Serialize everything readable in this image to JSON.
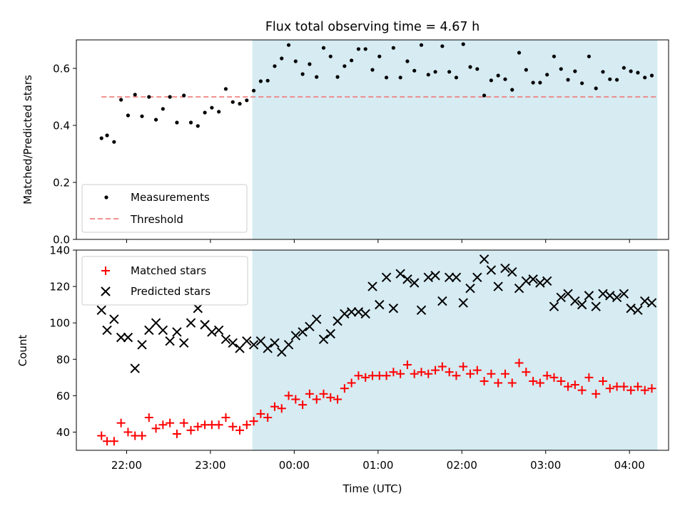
{
  "chart_data": [
    {
      "type": "scatter",
      "title": "Flux total observing time = 4.67 h",
      "ylabel": "Matched/Predicted stars",
      "xlabel": "",
      "ylim": [
        0,
        0.7
      ],
      "yticks": [
        0.0,
        0.2,
        0.4,
        0.6
      ],
      "ytick_labels": [
        "0.0",
        "0.2",
        "0.4",
        "0.6"
      ],
      "x_range": [
        "21:24",
        "04:28"
      ],
      "highlight_span": [
        "23:30",
        "04:20"
      ],
      "highlight_color": "#add8e6",
      "legend": {
        "placement": "lower-left",
        "entries": [
          "Measurements",
          "Threshold"
        ]
      },
      "series": [
        {
          "name": "Measurements",
          "marker": "dot",
          "color": "#000000",
          "x": [
            "21:42",
            "21:46",
            "21:51",
            "21:56",
            "22:01",
            "22:06",
            "22:11",
            "22:16",
            "22:21",
            "22:26",
            "22:31",
            "22:36",
            "22:41",
            "22:46",
            "22:51",
            "22:56",
            "23:01",
            "23:06",
            "23:11",
            "23:16",
            "23:21",
            "23:26",
            "23:31",
            "23:36",
            "23:41",
            "23:46",
            "23:51",
            "23:56",
            "00:01",
            "00:06",
            "00:11",
            "00:16",
            "00:21",
            "00:26",
            "00:31",
            "00:36",
            "00:41",
            "00:46",
            "00:51",
            "00:56",
            "01:01",
            "01:06",
            "01:11",
            "01:16",
            "01:21",
            "01:26",
            "01:31",
            "01:36",
            "01:41",
            "01:46",
            "01:51",
            "01:56",
            "02:01",
            "02:06",
            "02:11",
            "02:16",
            "02:21",
            "02:26",
            "02:31",
            "02:36",
            "02:41",
            "02:46",
            "02:51",
            "02:56",
            "03:01",
            "03:06",
            "03:11",
            "03:16",
            "03:21",
            "03:26",
            "03:31",
            "03:36",
            "03:41",
            "03:46",
            "03:51",
            "03:56",
            "04:01",
            "04:06",
            "04:11",
            "04:16"
          ],
          "y": [
            0.355,
            0.365,
            0.342,
            0.49,
            0.435,
            0.508,
            0.432,
            0.5,
            0.42,
            0.458,
            0.5,
            0.41,
            0.505,
            0.41,
            0.398,
            0.445,
            0.462,
            0.448,
            0.528,
            0.482,
            0.476,
            0.488,
            0.522,
            0.555,
            0.557,
            0.608,
            0.635,
            0.682,
            0.625,
            0.58,
            0.615,
            0.57,
            0.672,
            0.642,
            0.57,
            0.608,
            0.628,
            0.668,
            0.668,
            0.595,
            0.642,
            0.568,
            0.672,
            0.568,
            0.625,
            0.592,
            0.682,
            0.578,
            0.588,
            0.678,
            0.588,
            0.568,
            0.685,
            0.605,
            0.598,
            0.505,
            0.558,
            0.575,
            0.562,
            0.525,
            0.655,
            0.595,
            0.55,
            0.55,
            0.578,
            0.642,
            0.598,
            0.56,
            0.59,
            0.548,
            0.642,
            0.53,
            0.588,
            0.562,
            0.56,
            0.602,
            0.59,
            0.585,
            0.568,
            0.575
          ]
        },
        {
          "name": "Threshold",
          "marker": "dashed-line",
          "color": "#f08080",
          "x": [
            "21:42",
            "04:20"
          ],
          "y": [
            0.5,
            0.5
          ]
        }
      ]
    },
    {
      "type": "scatter",
      "title": "",
      "xlabel": "Time (UTC)",
      "ylabel": "Count",
      "ylim": [
        30,
        140
      ],
      "yticks": [
        40,
        60,
        80,
        100,
        120,
        140
      ],
      "ytick_labels": [
        "40",
        "60",
        "80",
        "100",
        "120",
        "140"
      ],
      "x_range": [
        "21:24",
        "04:28"
      ],
      "xtick_values": [
        "22:00",
        "23:00",
        "24:00",
        "25:00",
        "26:00",
        "27:00",
        "28:00"
      ],
      "xtick_labels": [
        "22:00",
        "23:00",
        "00:00",
        "01:00",
        "02:00",
        "03:00",
        "04:00"
      ],
      "highlight_span": [
        "23:30",
        "04:20"
      ],
      "highlight_color": "#add8e6",
      "legend": {
        "placement": "upper-left",
        "entries": [
          "Matched stars",
          "Predicted stars"
        ]
      },
      "series": [
        {
          "name": "Matched stars",
          "marker": "plus",
          "color": "#ff0000",
          "x": [
            "21:42",
            "21:46",
            "21:51",
            "21:56",
            "22:01",
            "22:06",
            "22:11",
            "22:16",
            "22:21",
            "22:26",
            "22:31",
            "22:36",
            "22:41",
            "22:46",
            "22:51",
            "22:56",
            "23:01",
            "23:06",
            "23:11",
            "23:16",
            "23:21",
            "23:26",
            "23:31",
            "23:36",
            "23:41",
            "23:46",
            "23:51",
            "23:56",
            "00:01",
            "00:06",
            "00:11",
            "00:16",
            "00:21",
            "00:26",
            "00:31",
            "00:36",
            "00:41",
            "00:46",
            "00:51",
            "00:56",
            "01:01",
            "01:06",
            "01:11",
            "01:16",
            "01:21",
            "01:26",
            "01:31",
            "01:36",
            "01:41",
            "01:46",
            "01:51",
            "01:56",
            "02:01",
            "02:06",
            "02:11",
            "02:16",
            "02:21",
            "02:26",
            "02:31",
            "02:36",
            "02:41",
            "02:46",
            "02:51",
            "02:56",
            "03:01",
            "03:06",
            "03:11",
            "03:16",
            "03:21",
            "03:26",
            "03:31",
            "03:36",
            "03:41",
            "03:46",
            "03:51",
            "03:56",
            "04:01",
            "04:06",
            "04:11",
            "04:16"
          ],
          "y": [
            38,
            35,
            35,
            45,
            40,
            38,
            38,
            48,
            42,
            44,
            45,
            39,
            45,
            41,
            43,
            44,
            44,
            44,
            48,
            43,
            41,
            44,
            46,
            50,
            48,
            54,
            53,
            60,
            58,
            55,
            61,
            58,
            61,
            59,
            58,
            64,
            67,
            71,
            70,
            71,
            71,
            71,
            73,
            72,
            77,
            72,
            73,
            72,
            74,
            76,
            73,
            71,
            76,
            72,
            74,
            68,
            72,
            67,
            72,
            67,
            78,
            73,
            68,
            67,
            71,
            70,
            68,
            65,
            66,
            63,
            70,
            61,
            68,
            64,
            65,
            65,
            63,
            65,
            63,
            64
          ]
        },
        {
          "name": "Predicted stars",
          "marker": "x",
          "color": "#000000",
          "x": [
            "21:42",
            "21:46",
            "21:51",
            "21:56",
            "22:01",
            "22:06",
            "22:11",
            "22:16",
            "22:21",
            "22:26",
            "22:31",
            "22:36",
            "22:41",
            "22:46",
            "22:51",
            "22:56",
            "23:01",
            "23:06",
            "23:11",
            "23:16",
            "23:21",
            "23:26",
            "23:31",
            "23:36",
            "23:41",
            "23:46",
            "23:51",
            "23:56",
            "00:01",
            "00:06",
            "00:11",
            "00:16",
            "00:21",
            "00:26",
            "00:31",
            "00:36",
            "00:41",
            "00:46",
            "00:51",
            "00:56",
            "01:01",
            "01:06",
            "01:11",
            "01:16",
            "01:21",
            "01:26",
            "01:31",
            "01:36",
            "01:41",
            "01:46",
            "01:51",
            "01:56",
            "02:01",
            "02:06",
            "02:11",
            "02:16",
            "02:21",
            "02:26",
            "02:31",
            "02:36",
            "02:41",
            "02:46",
            "02:51",
            "02:56",
            "03:01",
            "03:06",
            "03:11",
            "03:16",
            "03:21",
            "03:26",
            "03:31",
            "03:36",
            "03:41",
            "03:46",
            "03:51",
            "03:56",
            "04:01",
            "04:06",
            "04:11",
            "04:16"
          ],
          "y": [
            107,
            96,
            102,
            92,
            92,
            75,
            88,
            96,
            100,
            96,
            90,
            95,
            89,
            100,
            108,
            99,
            95,
            96,
            91,
            89,
            86,
            90,
            88,
            90,
            86,
            89,
            84,
            88,
            93,
            95,
            98,
            102,
            91,
            94,
            101,
            105,
            106,
            106,
            105,
            120,
            110,
            125,
            108,
            127,
            124,
            122,
            107,
            125,
            126,
            112,
            125,
            125,
            111,
            119,
            125,
            135,
            129,
            120,
            130,
            128,
            119,
            123,
            124,
            122,
            123,
            109,
            114,
            116,
            112,
            110,
            115,
            109,
            116,
            115,
            114,
            116,
            108,
            107,
            112,
            111
          ]
        }
      ]
    }
  ]
}
